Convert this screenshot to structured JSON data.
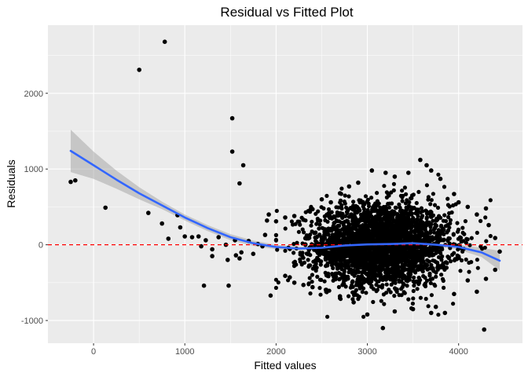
{
  "chart_data": {
    "type": "scatter",
    "title": "Residual vs Fitted Plot",
    "xlabel": "Fitted values",
    "ylabel": "Residuals",
    "xlim": [
      -500,
      4700
    ],
    "ylim": [
      -1300,
      2900
    ],
    "x_ticks": [
      0,
      1000,
      2000,
      3000,
      4000
    ],
    "x_tick_labels": [
      "0",
      "1000",
      "2000",
      "3000",
      "4000"
    ],
    "y_ticks": [
      -1000,
      0,
      1000,
      2000
    ],
    "y_tick_labels": [
      "-1000",
      "0",
      "1000",
      "2000"
    ],
    "grid": true,
    "reference_line": {
      "y": 0,
      "style": "dashed",
      "color": "#ff0000"
    },
    "colors": {
      "panel": "#ebebeb",
      "grid_major": "#ffffff",
      "points": "#000000",
      "smooth_line": "#3366ff",
      "ribbon": "#999999"
    },
    "series": [
      {
        "name": "residuals",
        "type": "scatter",
        "points": [
          [
            -250,
            830
          ],
          [
            -200,
            850
          ],
          [
            130,
            490
          ],
          [
            500,
            2310
          ],
          [
            780,
            2680
          ],
          [
            600,
            420
          ],
          [
            750,
            280
          ],
          [
            920,
            390
          ],
          [
            950,
            230
          ],
          [
            1000,
            110
          ],
          [
            1080,
            100
          ],
          [
            820,
            80
          ],
          [
            1150,
            110
          ],
          [
            1230,
            60
          ],
          [
            1180,
            -20
          ],
          [
            1370,
            100
          ],
          [
            1450,
            0
          ],
          [
            1470,
            -200
          ],
          [
            1480,
            -540
          ],
          [
            1210,
            -540
          ],
          [
            1300,
            -60
          ],
          [
            1300,
            -150
          ],
          [
            1520,
            1670
          ],
          [
            1520,
            1230
          ],
          [
            1640,
            1050
          ],
          [
            1600,
            810
          ],
          [
            1550,
            60
          ],
          [
            1560,
            -140
          ],
          [
            1600,
            -180
          ],
          [
            1620,
            -100
          ],
          [
            1700,
            50
          ],
          [
            1750,
            -120
          ],
          [
            1800,
            10
          ],
          [
            1850,
            -20
          ],
          [
            1880,
            130
          ],
          [
            1900,
            320
          ],
          [
            1920,
            400
          ],
          [
            1940,
            -670
          ],
          [
            2000,
            310
          ],
          [
            2100,
            360
          ],
          [
            2200,
            380
          ],
          [
            2300,
            330
          ],
          [
            2400,
            470
          ],
          [
            2500,
            600
          ],
          [
            2600,
            560
          ],
          [
            2700,
            680
          ],
          [
            2800,
            770
          ],
          [
            2900,
            820
          ],
          [
            3050,
            980
          ],
          [
            3200,
            950
          ],
          [
            3300,
            900
          ],
          [
            3450,
            950
          ],
          [
            3580,
            1120
          ],
          [
            3650,
            1050
          ],
          [
            3700,
            980
          ],
          [
            3800,
            870
          ],
          [
            3950,
            670
          ],
          [
            4000,
            560
          ],
          [
            4100,
            500
          ],
          [
            4200,
            400
          ],
          [
            4300,
            480
          ],
          [
            4330,
            260
          ],
          [
            4400,
            90
          ],
          [
            4450,
            -90
          ],
          [
            4400,
            -330
          ],
          [
            4300,
            -450
          ],
          [
            4280,
            -1120
          ],
          [
            4200,
            -620
          ],
          [
            4100,
            -470
          ],
          [
            3950,
            -650
          ],
          [
            3850,
            -900
          ],
          [
            3750,
            -820
          ],
          [
            3700,
            -900
          ],
          [
            3500,
            -850
          ],
          [
            3300,
            -880
          ],
          [
            3170,
            -1100
          ],
          [
            3000,
            -920
          ],
          [
            2850,
            -760
          ],
          [
            2700,
            -680
          ],
          [
            2550,
            -620
          ],
          [
            2400,
            -560
          ],
          [
            2300,
            -530
          ],
          [
            2200,
            -500
          ],
          [
            2150,
            -430
          ],
          [
            2100,
            -410
          ]
        ]
      },
      {
        "name": "loess fit",
        "type": "line",
        "points": [
          [
            -250,
            1240
          ],
          [
            0,
            1050
          ],
          [
            250,
            860
          ],
          [
            500,
            680
          ],
          [
            750,
            520
          ],
          [
            1000,
            360
          ],
          [
            1250,
            220
          ],
          [
            1500,
            100
          ],
          [
            1750,
            20
          ],
          [
            2000,
            -30
          ],
          [
            2250,
            -50
          ],
          [
            2500,
            -40
          ],
          [
            2750,
            -10
          ],
          [
            3000,
            5
          ],
          [
            3250,
            10
          ],
          [
            3500,
            20
          ],
          [
            3750,
            0
          ],
          [
            4000,
            -30
          ],
          [
            4250,
            -100
          ],
          [
            4450,
            -210
          ]
        ]
      },
      {
        "name": "confidence band",
        "type": "area",
        "upper": [
          [
            -250,
            1520
          ],
          [
            0,
            1230
          ],
          [
            250,
            980
          ],
          [
            500,
            760
          ],
          [
            750,
            570
          ],
          [
            1000,
            400
          ],
          [
            1250,
            260
          ],
          [
            1500,
            140
          ],
          [
            1750,
            55
          ],
          [
            2000,
            0
          ],
          [
            2250,
            -25
          ],
          [
            2500,
            -20
          ],
          [
            2750,
            5
          ],
          [
            3000,
            18
          ],
          [
            3250,
            24
          ],
          [
            3500,
            35
          ],
          [
            3750,
            20
          ],
          [
            4000,
            5
          ],
          [
            4250,
            -40
          ],
          [
            4450,
            -80
          ]
        ],
        "lower": [
          [
            -250,
            960
          ],
          [
            0,
            870
          ],
          [
            250,
            740
          ],
          [
            500,
            600
          ],
          [
            750,
            470
          ],
          [
            1000,
            320
          ],
          [
            1250,
            180
          ],
          [
            1500,
            60
          ],
          [
            1750,
            -15
          ],
          [
            2000,
            -60
          ],
          [
            2250,
            -75
          ],
          [
            2500,
            -60
          ],
          [
            2750,
            -25
          ],
          [
            3000,
            -8
          ],
          [
            3250,
            -4
          ],
          [
            3500,
            5
          ],
          [
            3750,
            -20
          ],
          [
            4000,
            -65
          ],
          [
            4250,
            -160
          ],
          [
            4450,
            -340
          ]
        ]
      }
    ],
    "dense_cluster": {
      "description_note": "approximately 3000 points, roughly normal",
      "x_mean": 3150,
      "x_sd": 380,
      "y_mean": 0,
      "y_sd": 270,
      "count": 3000
    }
  }
}
